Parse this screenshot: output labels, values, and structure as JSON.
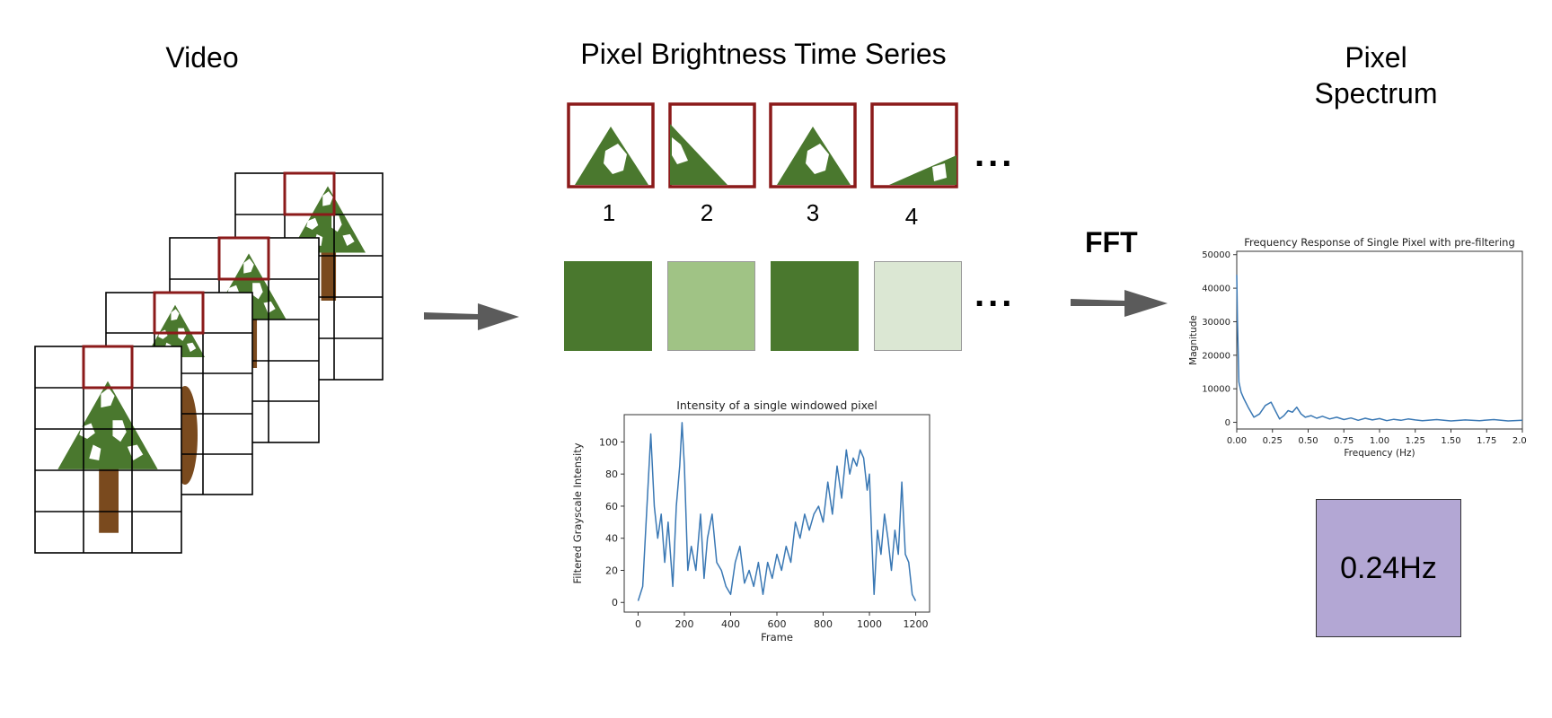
{
  "video": {
    "title": "Video"
  },
  "timeseries": {
    "title": "Pixel Brightness Time Series",
    "frame_labels": [
      "1",
      "2",
      "3",
      "4"
    ],
    "ellipsis": "...",
    "swatch_colors": [
      "#4a782e",
      "#a0c385",
      "#4a782e",
      "#dbe7d3"
    ]
  },
  "spectrum": {
    "title_line1": "Pixel",
    "title_line2": "Spectrum",
    "result": "0.24Hz"
  },
  "fft_label": "FFT",
  "colors": {
    "tree_green": "#4a782e",
    "window_red": "#8b1a1a",
    "trunk_brown": "#7a4a1e",
    "result_purple": "#b3a7d4",
    "line_blue": "#3a78b4"
  },
  "chart_data": [
    {
      "type": "line",
      "title": "Intensity of a single windowed pixel",
      "xlabel": "Frame",
      "ylabel": "Filtered Grayscale Intensity",
      "xlim": [
        -60,
        1260
      ],
      "ylim": [
        -6,
        117
      ],
      "xticks": [
        0,
        200,
        400,
        600,
        800,
        1000,
        1200
      ],
      "yticks": [
        0,
        20,
        40,
        60,
        80,
        100
      ],
      "x": [
        0,
        20,
        40,
        55,
        70,
        85,
        100,
        115,
        130,
        150,
        165,
        180,
        190,
        200,
        215,
        230,
        250,
        270,
        285,
        300,
        320,
        340,
        360,
        380,
        400,
        420,
        440,
        460,
        480,
        500,
        520,
        540,
        560,
        580,
        600,
        620,
        640,
        660,
        680,
        700,
        720,
        740,
        760,
        780,
        800,
        820,
        840,
        860,
        880,
        900,
        915,
        930,
        945,
        960,
        975,
        990,
        1000,
        1010,
        1020,
        1035,
        1050,
        1065,
        1080,
        1095,
        1110,
        1125,
        1140,
        1155,
        1170,
        1185,
        1200
      ],
      "y": [
        1,
        10,
        65,
        105,
        60,
        40,
        55,
        25,
        50,
        10,
        60,
        85,
        112,
        85,
        20,
        35,
        20,
        55,
        15,
        40,
        55,
        25,
        20,
        10,
        5,
        25,
        35,
        12,
        20,
        10,
        25,
        5,
        25,
        15,
        30,
        20,
        35,
        25,
        50,
        40,
        55,
        45,
        55,
        60,
        50,
        75,
        55,
        85,
        65,
        95,
        80,
        90,
        85,
        95,
        90,
        70,
        80,
        40,
        5,
        45,
        30,
        55,
        40,
        20,
        45,
        30,
        75,
        30,
        25,
        5,
        1
      ]
    },
    {
      "type": "line",
      "title": "Frequency Response of Single Pixel with pre-filtering",
      "xlabel": "Frequency (Hz)",
      "ylabel": "Magnitude",
      "xlim": [
        0,
        2
      ],
      "ylim": [
        -2000,
        51000
      ],
      "xticks": [
        0,
        0.25,
        0.5,
        0.75,
        1.0,
        1.25,
        1.5,
        1.75,
        2.0
      ],
      "xtick_labels": [
        "0.00",
        "0.25",
        "0.50",
        "0.75",
        "1.00",
        "1.25",
        "1.50",
        "1.75",
        "2.00"
      ],
      "yticks": [
        0,
        10000,
        20000,
        30000,
        40000,
        50000
      ],
      "x": [
        0,
        0.005,
        0.015,
        0.03,
        0.05,
        0.08,
        0.12,
        0.16,
        0.2,
        0.24,
        0.27,
        0.3,
        0.33,
        0.36,
        0.39,
        0.42,
        0.45,
        0.48,
        0.52,
        0.56,
        0.6,
        0.65,
        0.7,
        0.75,
        0.8,
        0.85,
        0.9,
        0.95,
        1.0,
        1.05,
        1.1,
        1.15,
        1.2,
        1.25,
        1.3,
        1.4,
        1.5,
        1.6,
        1.7,
        1.8,
        1.9,
        2.0
      ],
      "y": [
        44000,
        30000,
        12000,
        9000,
        7000,
        4500,
        1500,
        2500,
        5000,
        6000,
        3500,
        1000,
        2000,
        3500,
        3000,
        4500,
        2500,
        1500,
        2000,
        1200,
        1800,
        1000,
        1500,
        800,
        1300,
        600,
        1200,
        700,
        1100,
        500,
        900,
        600,
        1000,
        700,
        500,
        800,
        400,
        700,
        500,
        800,
        400,
        600
      ]
    }
  ]
}
